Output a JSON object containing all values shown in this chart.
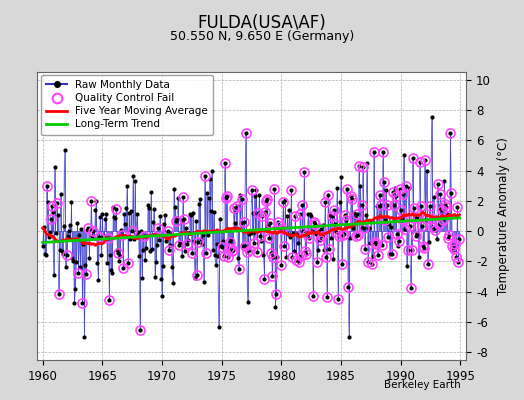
{
  "title": "FULDA(USA\\AF)",
  "subtitle": "50.550 N, 9.650 E (Germany)",
  "ylabel": "Temperature Anomaly (°C)",
  "xlabel_years": [
    1960,
    1965,
    1970,
    1975,
    1980,
    1985,
    1990,
    1995
  ],
  "ylim": [
    -8.5,
    10.5
  ],
  "yticks": [
    -8,
    -6,
    -4,
    -2,
    0,
    2,
    4,
    6,
    8,
    10
  ],
  "xlim": [
    1959.5,
    1995.5
  ],
  "bg_color": "#d8d8d8",
  "plot_bg_color": "#ffffff",
  "watermark": "Berkeley Earth",
  "line_color": "#3333cc",
  "dot_color": "#000000",
  "qc_color": "#ff44ff",
  "ma_color": "#ff0000",
  "trend_color": "#00cc00",
  "seed": 12345
}
